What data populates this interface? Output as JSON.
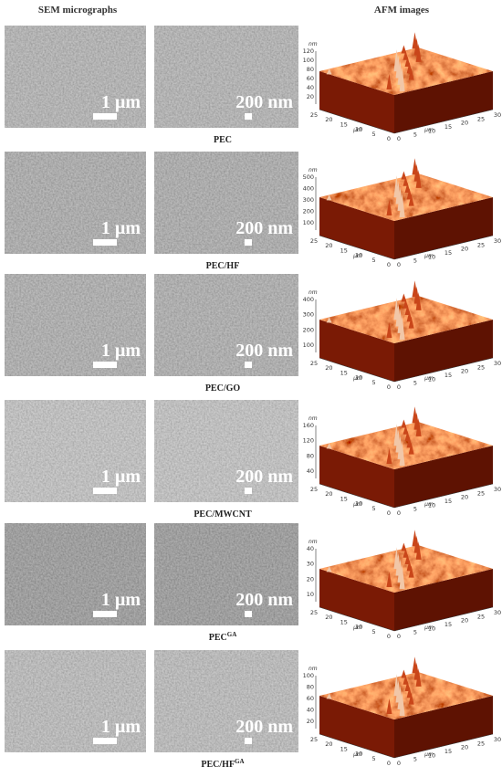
{
  "header": {
    "sem_title": "SEM micrographs",
    "afm_title": "AFM images"
  },
  "rows": [
    {
      "label": "PEC",
      "sem_scale_1": "1 µm",
      "sem_scale_2": "200 nm",
      "afm": {
        "z_unit": "nm",
        "z_ticks": [
          120,
          100,
          80,
          60,
          40,
          20
        ],
        "left_ticks": [
          25,
          20,
          15,
          10,
          5,
          0
        ],
        "right_ticks": [
          0,
          5,
          10,
          15,
          20,
          25,
          30
        ],
        "left_unit": "µm",
        "right_unit": "µm"
      }
    },
    {
      "label": "PEC/HF",
      "sem_scale_1": "1 µm",
      "sem_scale_2": "200 nm",
      "afm": {
        "z_unit": "nm",
        "z_ticks": [
          500,
          400,
          300,
          200,
          100
        ],
        "left_ticks": [
          25,
          20,
          15,
          10,
          5,
          0
        ],
        "right_ticks": [
          0,
          5,
          10,
          15,
          20,
          25,
          30
        ],
        "left_unit": "µm",
        "right_unit": "µm"
      }
    },
    {
      "label": "PEC/GO",
      "sem_scale_1": "1 µm",
      "sem_scale_2": "200 nm",
      "afm": {
        "z_unit": "nm",
        "z_ticks": [
          400,
          300,
          200,
          100
        ],
        "left_ticks": [
          25,
          20,
          15,
          10,
          5,
          0
        ],
        "right_ticks": [
          0,
          5,
          10,
          15,
          20,
          25,
          30
        ],
        "left_unit": "µm",
        "right_unit": "µm"
      }
    },
    {
      "label": "PEC/MWCNT",
      "sem_scale_1": "1 µm",
      "sem_scale_2": "200 nm",
      "afm": {
        "z_unit": "nm",
        "z_ticks": [
          160,
          120,
          80,
          40
        ],
        "left_ticks": [
          25,
          20,
          15,
          10,
          5,
          0
        ],
        "right_ticks": [
          0,
          5,
          10,
          15,
          20,
          25,
          30
        ],
        "left_unit": "µm",
        "right_unit": "µm"
      }
    },
    {
      "label": "PEC",
      "label_sup": "GA",
      "sem_scale_1": "1 µm",
      "sem_scale_2": "200 nm",
      "afm": {
        "z_unit": "nm",
        "z_ticks": [
          40,
          30,
          20,
          10
        ],
        "left_ticks": [
          25,
          20,
          15,
          10,
          5,
          0
        ],
        "right_ticks": [
          0,
          5,
          10,
          15,
          20,
          25,
          30
        ],
        "left_unit": "µm",
        "right_unit": "µm"
      }
    },
    {
      "label": "PEC/HF",
      "label_sup": "GA",
      "sem_scale_1": "1 µm",
      "sem_scale_2": "200 nm",
      "afm": {
        "z_unit": "nm",
        "z_ticks": [
          100,
          80,
          60,
          40,
          20
        ],
        "left_ticks": [
          25,
          20,
          15,
          10,
          5,
          0
        ],
        "right_ticks": [
          0,
          5,
          10,
          15,
          20,
          25,
          30
        ],
        "left_unit": "µm",
        "right_unit": "µm"
      }
    }
  ]
}
